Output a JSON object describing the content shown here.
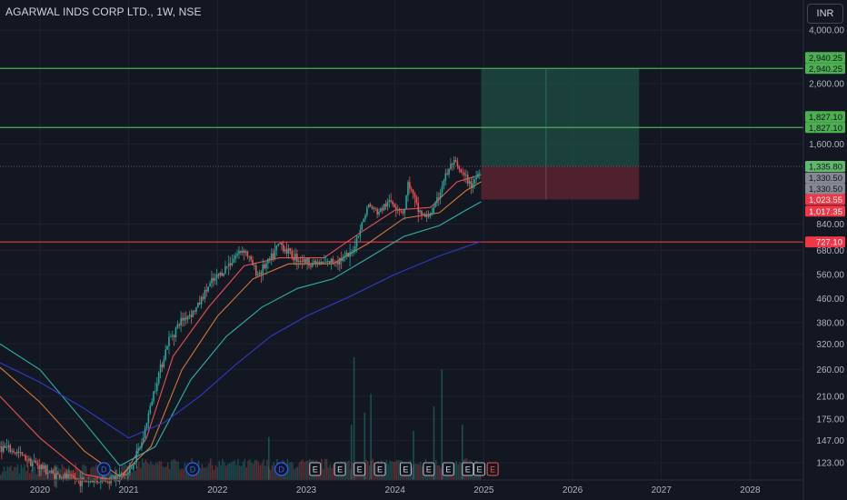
{
  "header": {
    "symbol_title": "AGARWAL INDS CORP LTD., 1W, NSE",
    "currency_button": "INR"
  },
  "colors": {
    "background": "#131722",
    "grid": "#1e222d",
    "axis_text": "#b2b5be",
    "up_candle": "#26a69a",
    "down_candle": "#ef5350",
    "ema_fast": "#ef5350",
    "ema_mid": "#e07b3a",
    "ema_slow": "#2bbbad",
    "sma_long": "#2f3dd0",
    "target_line": "#4caf50",
    "stop_line": "#f23645",
    "profit_zone": "#1f4f45",
    "loss_zone": "#5a2330"
  },
  "chart_data": {
    "type": "candlestick",
    "scale": "log",
    "x_axis": {
      "ticks": [
        "2020",
        "2021",
        "2022",
        "2023",
        "2024",
        "2025",
        "2026",
        "2027",
        "2028"
      ],
      "range": [
        2019.55,
        2028.6
      ]
    },
    "y_axis": {
      "ticks": [
        "4,000.00",
        "2,600.00",
        "1,600.00",
        "840.00",
        "680.00",
        "560.00",
        "460.00",
        "380.00",
        "320.00",
        "260.00",
        "210.00",
        "175.00",
        "147.00",
        "123.00"
      ],
      "tick_values": [
        4000,
        2600,
        1600,
        840,
        680,
        560,
        460,
        380,
        320,
        260,
        210,
        175,
        147,
        123
      ],
      "range": [
        107,
        5100
      ]
    },
    "price_series": [
      {
        "t": 2019.55,
        "p": 140
      },
      {
        "t": 2019.75,
        "p": 133
      },
      {
        "t": 2019.95,
        "p": 122
      },
      {
        "t": 2020.15,
        "p": 112
      },
      {
        "t": 2020.5,
        "p": 106
      },
      {
        "t": 2020.8,
        "p": 108
      },
      {
        "t": 2021.0,
        "p": 113
      },
      {
        "t": 2021.15,
        "p": 145
      },
      {
        "t": 2021.3,
        "p": 230
      },
      {
        "t": 2021.45,
        "p": 330
      },
      {
        "t": 2021.6,
        "p": 390
      },
      {
        "t": 2021.75,
        "p": 420
      },
      {
        "t": 2021.9,
        "p": 510
      },
      {
        "t": 2022.05,
        "p": 570
      },
      {
        "t": 2022.2,
        "p": 650
      },
      {
        "t": 2022.3,
        "p": 690
      },
      {
        "t": 2022.45,
        "p": 560
      },
      {
        "t": 2022.6,
        "p": 630
      },
      {
        "t": 2022.7,
        "p": 720
      },
      {
        "t": 2022.85,
        "p": 650
      },
      {
        "t": 2023.0,
        "p": 620
      },
      {
        "t": 2023.2,
        "p": 610
      },
      {
        "t": 2023.35,
        "p": 630
      },
      {
        "t": 2023.5,
        "p": 650
      },
      {
        "t": 2023.6,
        "p": 800
      },
      {
        "t": 2023.7,
        "p": 980
      },
      {
        "t": 2023.8,
        "p": 920
      },
      {
        "t": 2023.95,
        "p": 1010
      },
      {
        "t": 2024.1,
        "p": 920
      },
      {
        "t": 2024.15,
        "p": 1180
      },
      {
        "t": 2024.25,
        "p": 950
      },
      {
        "t": 2024.35,
        "p": 880
      },
      {
        "t": 2024.45,
        "p": 960
      },
      {
        "t": 2024.55,
        "p": 1200
      },
      {
        "t": 2024.65,
        "p": 1380
      },
      {
        "t": 2024.75,
        "p": 1260
      },
      {
        "t": 2024.85,
        "p": 1150
      },
      {
        "t": 2024.92,
        "p": 1230
      },
      {
        "t": 2024.97,
        "p": 1335.8
      }
    ],
    "moving_averages": [
      {
        "name": "",
        "color_key": "ema_fast",
        "points": [
          [
            2019.55,
            210
          ],
          [
            2020.0,
            150
          ],
          [
            2020.5,
            112
          ],
          [
            2020.9,
            106
          ],
          [
            2021.2,
            150
          ],
          [
            2021.5,
            290
          ],
          [
            2021.9,
            430
          ],
          [
            2022.3,
            600
          ],
          [
            2022.7,
            640
          ],
          [
            2023.2,
            640
          ],
          [
            2023.6,
            780
          ],
          [
            2024.0,
            940
          ],
          [
            2024.4,
            960
          ],
          [
            2024.7,
            1180
          ],
          [
            2024.97,
            1250
          ]
        ]
      },
      {
        "name": "",
        "color_key": "ema_mid",
        "points": [
          [
            2019.55,
            265
          ],
          [
            2020.0,
            200
          ],
          [
            2020.5,
            135
          ],
          [
            2020.9,
            110
          ],
          [
            2021.25,
            140
          ],
          [
            2021.6,
            260
          ],
          [
            2022.0,
            400
          ],
          [
            2022.4,
            540
          ],
          [
            2022.8,
            610
          ],
          [
            2023.3,
            610
          ],
          [
            2023.7,
            720
          ],
          [
            2024.1,
            880
          ],
          [
            2024.5,
            920
          ],
          [
            2024.8,
            1100
          ],
          [
            2024.97,
            1180
          ]
        ]
      },
      {
        "name": "",
        "color_key": "ema_slow",
        "points": [
          [
            2019.55,
            320
          ],
          [
            2020.0,
            260
          ],
          [
            2020.5,
            170
          ],
          [
            2020.9,
            120
          ],
          [
            2021.3,
            140
          ],
          [
            2021.7,
            240
          ],
          [
            2022.1,
            340
          ],
          [
            2022.5,
            430
          ],
          [
            2022.9,
            500
          ],
          [
            2023.3,
            540
          ],
          [
            2023.7,
            640
          ],
          [
            2024.1,
            760
          ],
          [
            2024.5,
            830
          ],
          [
            2024.8,
            940
          ],
          [
            2024.97,
            1005
          ]
        ]
      },
      {
        "name": "",
        "color_key": "sma_long",
        "points": [
          [
            2019.55,
            275
          ],
          [
            2020.0,
            235
          ],
          [
            2020.5,
            190
          ],
          [
            2021.0,
            150
          ],
          [
            2021.4,
            170
          ],
          [
            2021.8,
            210
          ],
          [
            2022.2,
            270
          ],
          [
            2022.6,
            340
          ],
          [
            2023.0,
            400
          ],
          [
            2023.5,
            470
          ],
          [
            2024.0,
            560
          ],
          [
            2024.5,
            650
          ],
          [
            2024.97,
            730
          ]
        ]
      }
    ],
    "levels": [
      {
        "label": "2,940.25",
        "value": 2940.25,
        "from": 2019.5,
        "kind": "target"
      },
      {
        "label": "1,827.10",
        "value": 1827.1,
        "from": 2019.3,
        "kind": "target"
      },
      {
        "label": "727.10",
        "value": 727.1,
        "from": 2019.0,
        "kind": "stop"
      }
    ],
    "position": {
      "start": 2024.97,
      "end": 2026.75,
      "split": 2025.7,
      "entry": 1335.8,
      "target": 2940.25,
      "stop": 1023.55
    },
    "price_labels": [
      {
        "label": "2,940.25",
        "value": 2940.25,
        "style": "green",
        "offset": -1
      },
      {
        "label": "2,940.25",
        "value": 2940.25,
        "style": "green",
        "offset": 0
      },
      {
        "label": "1,827.10",
        "value": 1827.1,
        "style": "green",
        "offset": -1
      },
      {
        "label": "1,827.10",
        "value": 1827.1,
        "style": "green",
        "offset": 0
      },
      {
        "label": "1,335.80",
        "value": 1335.8,
        "style": "lightgreen",
        "offset": 0
      },
      {
        "label": "1,330.50",
        "value": 1330.5,
        "style": "gray",
        "offset": 1
      },
      {
        "label": "1,330.50",
        "value": 1330.5,
        "style": "gray",
        "offset": 2
      },
      {
        "label": "1,023.55",
        "value": 1023.55,
        "style": "red",
        "offset": 0
      },
      {
        "label": "1,017.35",
        "value": 1017.35,
        "style": "red",
        "offset": 1
      },
      {
        "label": "727.10",
        "value": 727.1,
        "style": "red",
        "offset": 0
      }
    ],
    "event_markers": [
      {
        "t": 2020.72,
        "label": "D",
        "kind": "dividend"
      },
      {
        "t": 2021.72,
        "label": "D",
        "kind": "dividend"
      },
      {
        "t": 2022.72,
        "label": "D",
        "kind": "dividend"
      },
      {
        "t": 2023.1,
        "label": "E",
        "kind": "earnings"
      },
      {
        "t": 2023.38,
        "label": "E",
        "kind": "earnings"
      },
      {
        "t": 2023.6,
        "label": "E",
        "kind": "earnings"
      },
      {
        "t": 2023.83,
        "label": "E",
        "kind": "earnings"
      },
      {
        "t": 2024.12,
        "label": "E",
        "kind": "earnings"
      },
      {
        "t": 2024.38,
        "label": "E",
        "kind": "earnings"
      },
      {
        "t": 2024.6,
        "label": "E",
        "kind": "earnings"
      },
      {
        "t": 2024.82,
        "label": "E",
        "kind": "earnings"
      },
      {
        "t": 2024.95,
        "label": "E",
        "kind": "earnings-dividend"
      },
      {
        "t": 2025.1,
        "label": "E",
        "kind": "earnings-upcoming"
      }
    ],
    "volume_spikes": [
      {
        "t": 2022.57,
        "v": 0.35
      },
      {
        "t": 2023.5,
        "v": 0.45
      },
      {
        "t": 2023.53,
        "v": 1.0
      },
      {
        "t": 2023.65,
        "v": 0.55
      },
      {
        "t": 2023.72,
        "v": 0.7
      },
      {
        "t": 2024.2,
        "v": 0.4
      },
      {
        "t": 2024.43,
        "v": 0.6
      },
      {
        "t": 2024.52,
        "v": 0.9
      },
      {
        "t": 2024.75,
        "v": 0.45
      }
    ]
  }
}
